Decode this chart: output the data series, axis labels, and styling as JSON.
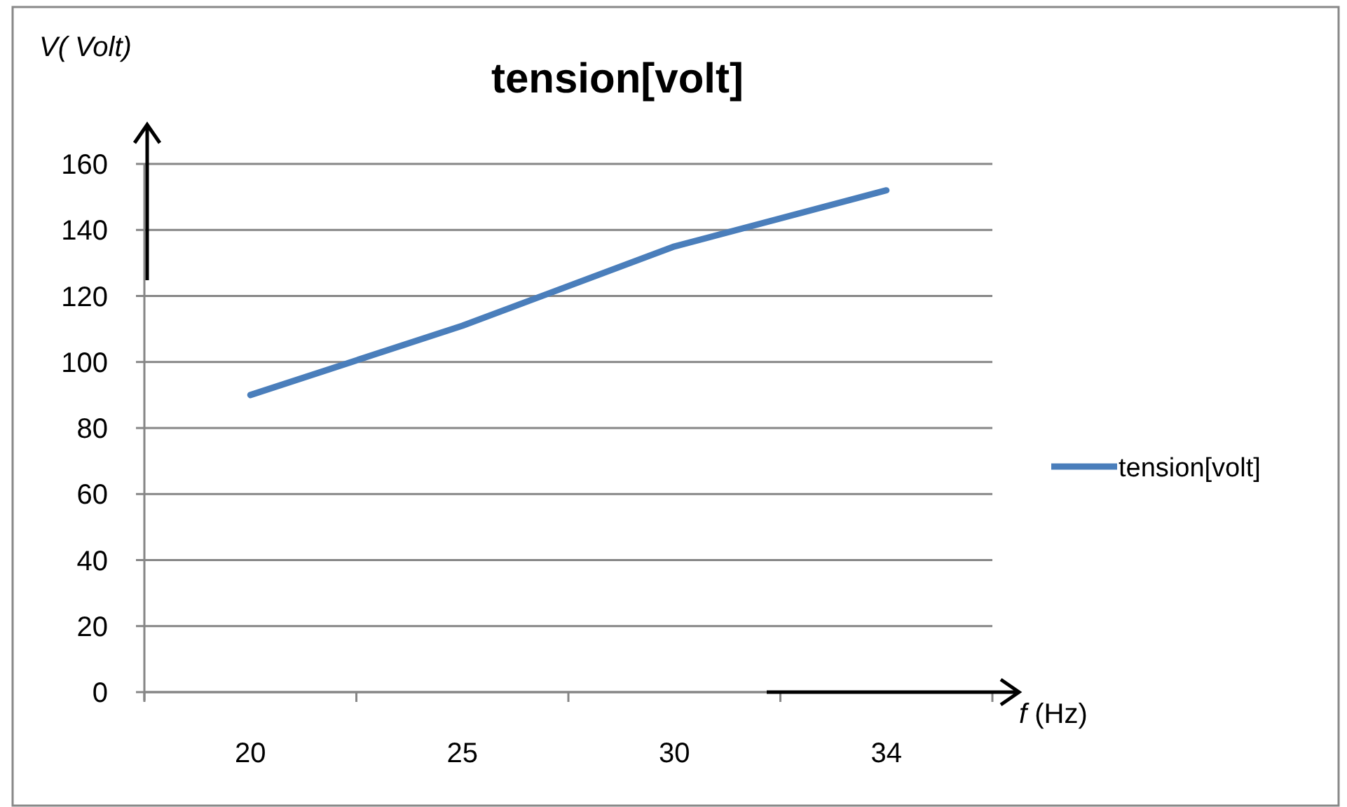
{
  "chart_data": {
    "type": "line",
    "title": "tension[volt]",
    "ylabel": "V( Volt)",
    "xlabel": "f (Hz)",
    "categories": [
      "20",
      "25",
      "30",
      "34"
    ],
    "series": [
      {
        "name": "tension[volt]",
        "color": "#4a7ebb",
        "values": [
          90,
          111,
          135,
          152
        ]
      }
    ],
    "ylim": [
      0,
      160
    ],
    "yticks": [
      0,
      20,
      40,
      60,
      80,
      100,
      120,
      140,
      160
    ],
    "grid": "y",
    "legend": "right",
    "marker": "none",
    "line_style": "solid"
  }
}
